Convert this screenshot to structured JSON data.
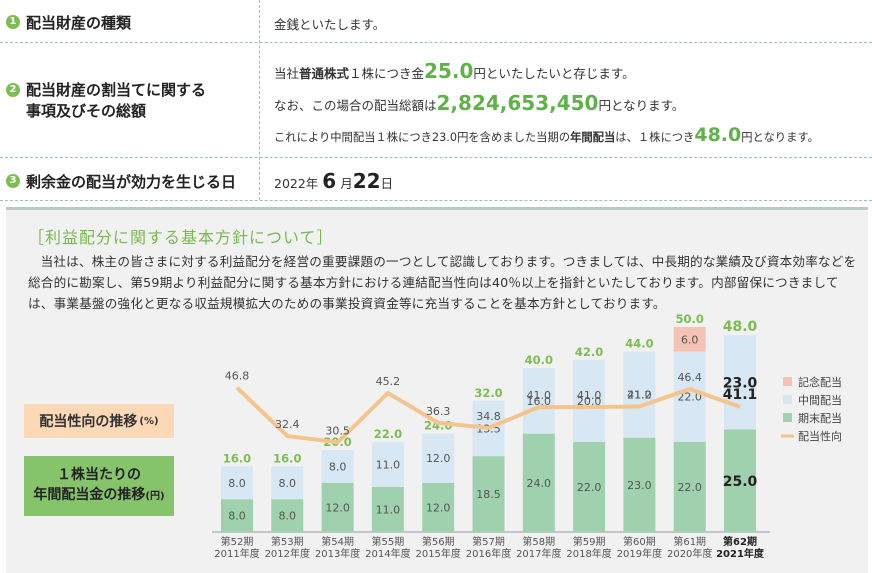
{
  "table": {
    "row1": {
      "num": "1",
      "label": "配当財産の種類",
      "value": "金銭といたします。"
    },
    "row2": {
      "num": "2",
      "label_line1": "配当財産の割当てに関する",
      "label_line2": "事項及びその総額",
      "line1_a": "当社",
      "line1_b": "普通株式",
      "line1_c": "１株につき金",
      "line1_amount": "25.0",
      "line1_d": "円といたしたいと存じます。",
      "line2_a": "なお、この場合の配当総額は",
      "line2_amount": "2,824,653,450",
      "line2_b": "円となります。",
      "line3_a": "これにより中間配当１株につき23.0円を含めました当期の",
      "line3_b": "年間配当",
      "line3_c": "は、１株につき",
      "line3_amount": "48.0",
      "line3_d": "円となります。"
    },
    "row3": {
      "num": "3",
      "label": "剰余金の配当が効力を生じる日",
      "year": "2022年",
      "month_num": "6",
      "month_unit": "月",
      "day_num": "22",
      "day_unit": "日"
    }
  },
  "policy": {
    "title": "［利益配分に関する基本方針について］",
    "body": "当社は、株主の皆さまに対する利益配分を経営の重要課題の一つとして認識しております。つきましては、中長期的な業績及び資本効率などを総合的に勘案し、第59期より利益配分に関する基本方針における連結配当性向は40％以上を指針といたしております。内部留保につきましては、事業基盤の強化と更なる収益規模拡大のための事業投資資金等に充当することを基本方針としております。"
  },
  "labels": {
    "payout": "配当性向の推移",
    "payout_unit": "(%)",
    "dividend_line1": "１株当たりの",
    "dividend_line2": "年間配当金の推移",
    "dividend_unit": "(円)"
  },
  "colors": {
    "commemorative": "#f5c3b4",
    "interim": "#d7e7f3",
    "year_end": "#9fd1ae",
    "payout_line": "#f5c48c",
    "accent_green": "#7cbd51"
  },
  "chart_data": {
    "type": "bar",
    "categories": [
      {
        "period": "第52期",
        "year": "2011年度"
      },
      {
        "period": "第53期",
        "year": "2012年度"
      },
      {
        "period": "第54期",
        "year": "2013年度"
      },
      {
        "period": "第55期",
        "year": "2014年度"
      },
      {
        "period": "第56期",
        "year": "2015年度"
      },
      {
        "period": "第57期",
        "year": "2016年度"
      },
      {
        "period": "第58期",
        "year": "2017年度"
      },
      {
        "period": "第59期",
        "year": "2018年度"
      },
      {
        "period": "第60期",
        "year": "2019年度"
      },
      {
        "period": "第61期",
        "year": "2020年度"
      },
      {
        "period": "第62期",
        "year": "2021年度"
      }
    ],
    "series": [
      {
        "name": "期末配当",
        "values": [
          8.0,
          8.0,
          12.0,
          11.0,
          12.0,
          18.5,
          24.0,
          22.0,
          23.0,
          22.0,
          25.0
        ]
      },
      {
        "name": "中間配当",
        "values": [
          8.0,
          8.0,
          8.0,
          11.0,
          12.0,
          13.5,
          16.0,
          20.0,
          21.0,
          22.0,
          23.0
        ]
      },
      {
        "name": "記念配当",
        "values": [
          0,
          0,
          0,
          0,
          0,
          0,
          0,
          0,
          0,
          6.0,
          0
        ]
      }
    ],
    "totals": [
      16.0,
      16.0,
      20.0,
      22.0,
      24.0,
      32.0,
      40.0,
      42.0,
      44.0,
      50.0,
      48.0
    ],
    "line_series": {
      "name": "配当性向",
      "values": [
        46.8,
        32.4,
        30.5,
        45.2,
        36.3,
        34.8,
        41.0,
        41.0,
        41.2,
        46.4,
        41.1
      ]
    },
    "legend": [
      "記念配当",
      "中間配当",
      "期末配当",
      "配当性向"
    ],
    "legend_position": "right"
  }
}
